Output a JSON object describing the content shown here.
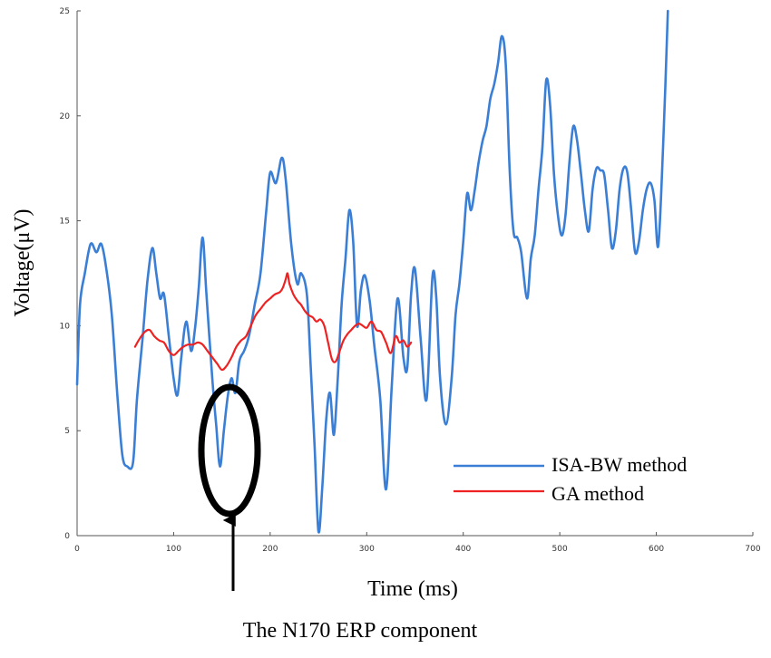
{
  "chart_data": {
    "type": "line",
    "title": "",
    "xlabel": "Time (ms)",
    "ylabel": "Voltage(μV)",
    "xlim": [
      0,
      700
    ],
    "ylim": [
      0,
      25
    ],
    "xticks": [
      "0",
      "100",
      "200",
      "300",
      "400",
      "500",
      "600",
      "700"
    ],
    "yticks": [
      "0",
      "5",
      "10",
      "15",
      "20",
      "25"
    ],
    "legend_position": "bottom-right",
    "colors": {
      "isa": "#3a7fd5",
      "ga": "#ee2222"
    },
    "series": [
      {
        "name": "ISA-BW method",
        "x": [
          0,
          3,
          8,
          14,
          20,
          25,
          30,
          36,
          42,
          47,
          52,
          58,
          62,
          68,
          73,
          78,
          82,
          86,
          90,
          95,
          100,
          104,
          108,
          113,
          118,
          122,
          126,
          130,
          134,
          140,
          144,
          148,
          152,
          156,
          160,
          164,
          168,
          173,
          178,
          184,
          190,
          196,
          200,
          206,
          212,
          216,
          222,
          228,
          232,
          238,
          242,
          246,
          250,
          254,
          258,
          262,
          266,
          270,
          274,
          278,
          282,
          286,
          290,
          294,
          298,
          303,
          308,
          314,
          320,
          326,
          332,
          338,
          342,
          346,
          350,
          356,
          362,
          368,
          372,
          376,
          382,
          388,
          392,
          396,
          400,
          404,
          408,
          412,
          416,
          420,
          424,
          428,
          432,
          436,
          440,
          444,
          448,
          452,
          456,
          460,
          466,
          470,
          474,
          478,
          482,
          486,
          490,
          494,
          498,
          502,
          506,
          510,
          514,
          518,
          522,
          526,
          530,
          534,
          538,
          542,
          546,
          550,
          554,
          558,
          562,
          566,
          570,
          574,
          578,
          582,
          586,
          590,
          594,
          598,
          602,
          607,
          612
        ],
        "values": [
          7.2,
          11,
          12.5,
          13.9,
          13.5,
          13.9,
          12.8,
          10.5,
          6.5,
          3.8,
          3.3,
          3.5,
          6.5,
          9.5,
          12.2,
          13.7,
          12.5,
          11.3,
          11.5,
          9.5,
          7.5,
          6.7,
          8.5,
          10.2,
          8.8,
          9.8,
          11.8,
          14.2,
          11.5,
          7.5,
          5.3,
          3.3,
          5,
          6.6,
          7.5,
          6.8,
          8.3,
          8.8,
          9.5,
          11,
          12.5,
          15.5,
          17.3,
          16.8,
          18,
          17,
          13.8,
          12,
          12.5,
          11.5,
          8,
          4.3,
          0.2,
          2.3,
          5.5,
          6.8,
          4.8,
          7.5,
          11,
          13.2,
          15.5,
          14,
          10,
          11.7,
          12.4,
          11.2,
          9,
          6.5,
          2.2,
          7.2,
          11.3,
          8.5,
          8,
          11.5,
          12.7,
          9.3,
          6.5,
          12.3,
          11.4,
          7.5,
          5.3,
          7.5,
          10.5,
          12,
          14,
          16.3,
          15.5,
          16.5,
          17.8,
          18.8,
          19.5,
          20.8,
          21.5,
          22.5,
          23.8,
          22.5,
          17.5,
          14.5,
          14.2,
          13.5,
          11.3,
          13.2,
          14.3,
          16.5,
          18.5,
          21.7,
          20.5,
          17.2,
          15.3,
          14.3,
          15.3,
          17.8,
          19.5,
          18.8,
          17.2,
          15.5,
          14.5,
          16.5,
          17.5,
          17.4,
          17.2,
          15.5,
          13.7,
          14.5,
          16.5,
          17.5,
          17.3,
          15.5,
          13.5,
          14,
          15.5,
          16.5,
          16.8,
          16,
          13.8,
          18.5,
          25
        ]
      },
      {
        "name": "GA method",
        "x": [
          60,
          65,
          70,
          75,
          80,
          85,
          90,
          95,
          100,
          105,
          110,
          115,
          120,
          125,
          130,
          135,
          140,
          145,
          150,
          155,
          160,
          165,
          170,
          175,
          180,
          185,
          190,
          195,
          200,
          205,
          210,
          213,
          216,
          218,
          220,
          224,
          228,
          232,
          236,
          240,
          244,
          248,
          252,
          256,
          260,
          264,
          268,
          272,
          276,
          280,
          284,
          288,
          292,
          296,
          300,
          305,
          310,
          315,
          320,
          325,
          330,
          334,
          338,
          342,
          346
        ],
        "values": [
          9,
          9.4,
          9.7,
          9.8,
          9.5,
          9.3,
          9.2,
          8.8,
          8.6,
          8.8,
          9,
          9.1,
          9.1,
          9.2,
          9.1,
          8.8,
          8.5,
          8.2,
          7.9,
          8.1,
          8.5,
          9,
          9.3,
          9.5,
          10,
          10.5,
          10.8,
          11.1,
          11.3,
          11.5,
          11.6,
          11.8,
          12.2,
          12.5,
          12,
          11.5,
          11.2,
          11,
          10.7,
          10.5,
          10.4,
          10.2,
          10.3,
          10,
          9.2,
          8.4,
          8.3,
          8.8,
          9.3,
          9.6,
          9.8,
          10,
          10.1,
          10,
          9.9,
          10.2,
          9.8,
          9.7,
          9.2,
          8.7,
          9.5,
          9.2,
          9.3,
          9,
          9.2
        ]
      }
    ],
    "annotations": [
      {
        "text": "The N170 ERP component",
        "target_x": 160,
        "target_y": 4
      }
    ]
  }
}
